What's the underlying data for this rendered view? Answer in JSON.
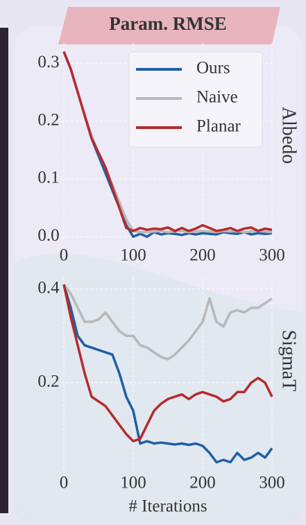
{
  "chart_data": [
    {
      "type": "line",
      "title": "Param. RMSE",
      "label": "Albedo",
      "x": [
        0,
        10,
        20,
        30,
        40,
        50,
        60,
        70,
        80,
        90,
        100,
        110,
        120,
        130,
        140,
        150,
        160,
        170,
        180,
        190,
        200,
        210,
        220,
        230,
        240,
        250,
        260,
        270,
        280,
        290,
        300
      ],
      "xlim": [
        -4,
        304
      ],
      "xticks": [
        0,
        100,
        200,
        300
      ],
      "ylim": [
        -0.008,
        0.335
      ],
      "yticks": [
        {
          "value": 0,
          "label": "0.0"
        },
        0.1,
        0.2,
        0.3
      ],
      "grid": true,
      "legend": "upper right",
      "series": [
        {
          "name": "Ours",
          "color": "#1f5fa8",
          "values": [
            0.32,
            0.29,
            0.25,
            0.21,
            0.17,
            0.14,
            0.11,
            0.08,
            0.05,
            0.02,
            0.0,
            0.005,
            0.0,
            0.008,
            0.004,
            0.006,
            0.005,
            0.003,
            0.006,
            0.004,
            0.006,
            0.005,
            0.004,
            0.008,
            0.006,
            0.005,
            0.008,
            0.004,
            0.006,
            0.005,
            0.006
          ]
        },
        {
          "name": "Naive",
          "color": "#b8b8b8",
          "values": [
            0.32,
            0.29,
            0.25,
            0.21,
            0.175,
            0.145,
            0.12,
            0.09,
            0.06,
            0.03,
            0.01,
            0.008,
            0.008,
            0.009,
            0.01,
            0.008,
            0.009,
            0.01,
            0.008,
            0.009,
            0.01,
            0.009,
            0.008,
            0.01,
            0.009,
            0.01,
            0.008,
            0.009,
            0.01,
            0.009,
            0.008
          ]
        },
        {
          "name": "Planar",
          "color": "#b82a2a",
          "values": [
            0.32,
            0.29,
            0.25,
            0.21,
            0.17,
            0.145,
            0.12,
            0.085,
            0.05,
            0.015,
            0.01,
            0.015,
            0.012,
            0.014,
            0.013,
            0.016,
            0.01,
            0.015,
            0.01,
            0.014,
            0.02,
            0.015,
            0.01,
            0.012,
            0.015,
            0.01,
            0.014,
            0.016,
            0.01,
            0.014,
            0.012
          ]
        }
      ]
    },
    {
      "type": "line",
      "label": "SigmaT",
      "xlabel": "# Iterations",
      "x": [
        0,
        10,
        20,
        30,
        40,
        50,
        60,
        70,
        80,
        90,
        100,
        110,
        120,
        130,
        140,
        150,
        160,
        170,
        180,
        190,
        200,
        210,
        220,
        230,
        240,
        250,
        260,
        270,
        280,
        290,
        300
      ],
      "xlim": [
        -4,
        304
      ],
      "xticks": [
        0,
        100,
        200,
        300
      ],
      "ylim": [
        0.01,
        0.425
      ],
      "yticks": [
        0.2,
        0.4
      ],
      "grid": true,
      "series": [
        {
          "color": "#1f5fa8",
          "values": [
            0.41,
            0.36,
            0.3,
            0.28,
            0.275,
            0.27,
            0.265,
            0.26,
            0.22,
            0.17,
            0.14,
            0.07,
            0.075,
            0.07,
            0.072,
            0.07,
            0.068,
            0.07,
            0.067,
            0.07,
            0.065,
            0.05,
            0.03,
            0.035,
            0.03,
            0.05,
            0.035,
            0.04,
            0.05,
            0.04,
            0.06
          ]
        },
        {
          "color": "#b8b8b8",
          "values": [
            0.41,
            0.39,
            0.36,
            0.33,
            0.33,
            0.335,
            0.35,
            0.33,
            0.31,
            0.3,
            0.3,
            0.28,
            0.275,
            0.265,
            0.255,
            0.25,
            0.26,
            0.275,
            0.29,
            0.31,
            0.33,
            0.38,
            0.33,
            0.32,
            0.35,
            0.355,
            0.35,
            0.36,
            0.36,
            0.37,
            0.38
          ]
        },
        {
          "color": "#b82a2a",
          "values": [
            0.41,
            0.34,
            0.28,
            0.22,
            0.17,
            0.16,
            0.15,
            0.13,
            0.11,
            0.09,
            0.075,
            0.08,
            0.11,
            0.14,
            0.155,
            0.165,
            0.17,
            0.175,
            0.165,
            0.175,
            0.18,
            0.175,
            0.17,
            0.16,
            0.165,
            0.18,
            0.18,
            0.2,
            0.21,
            0.2,
            0.17
          ]
        }
      ]
    }
  ]
}
